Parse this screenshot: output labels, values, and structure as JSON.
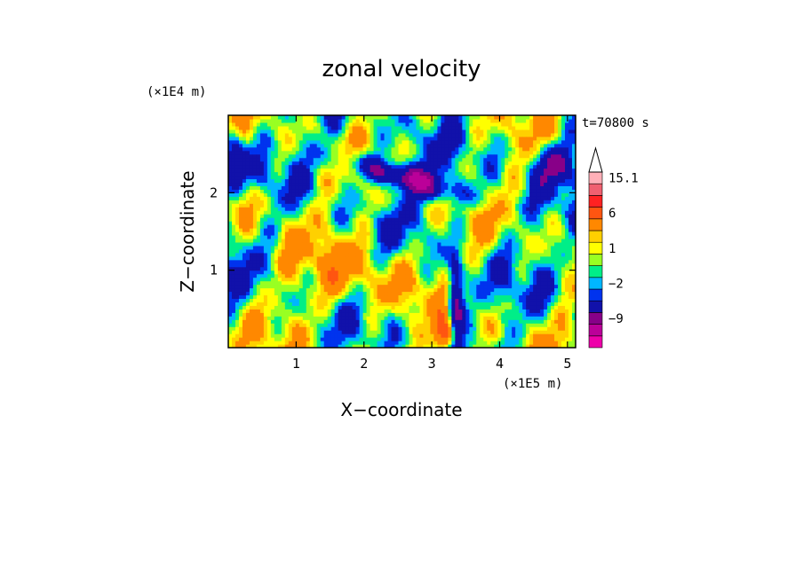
{
  "chart_data": {
    "type": "heatmap",
    "title": "zonal velocity",
    "xlabel": "X−coordinate",
    "ylabel": "Z−coordinate",
    "x_unit": "(×1E5 m)",
    "y_unit": "(×1E4 m)",
    "time_label": "t=70800 s",
    "xlim": [
      0,
      5.12
    ],
    "ylim": [
      0,
      3.0
    ],
    "x_ticks": [
      {
        "value": 1,
        "label": "1"
      },
      {
        "value": 2,
        "label": "2"
      },
      {
        "value": 3,
        "label": "3"
      },
      {
        "value": 4,
        "label": "4"
      },
      {
        "value": 5,
        "label": "5"
      }
    ],
    "y_ticks": [
      {
        "value": 1,
        "label": "1"
      },
      {
        "value": 2,
        "label": "2"
      }
    ],
    "colorbar": {
      "levels": [
        -15,
        -12,
        -9,
        -6,
        -3,
        -2,
        -1,
        0,
        1,
        2,
        3,
        6,
        9,
        12,
        15.1
      ],
      "colors": [
        "#ee00aa",
        "#bb0099",
        "#880088",
        "#1111aa",
        "#0033ee",
        "#00b6ff",
        "#00ee88",
        "#99ff22",
        "#ffff00",
        "#ffd000",
        "#ff8800",
        "#ff5511",
        "#ff2222",
        "#f06070",
        "#ffb0b8"
      ],
      "labels": [
        {
          "value": 15.1,
          "label": "15.1"
        },
        {
          "value": 6,
          "label": "6"
        },
        {
          "value": 1,
          "label": "1"
        },
        {
          "value": -2,
          "label": "−2"
        },
        {
          "value": -9,
          "label": "−9"
        }
      ]
    },
    "grid": false,
    "legend": "right"
  }
}
